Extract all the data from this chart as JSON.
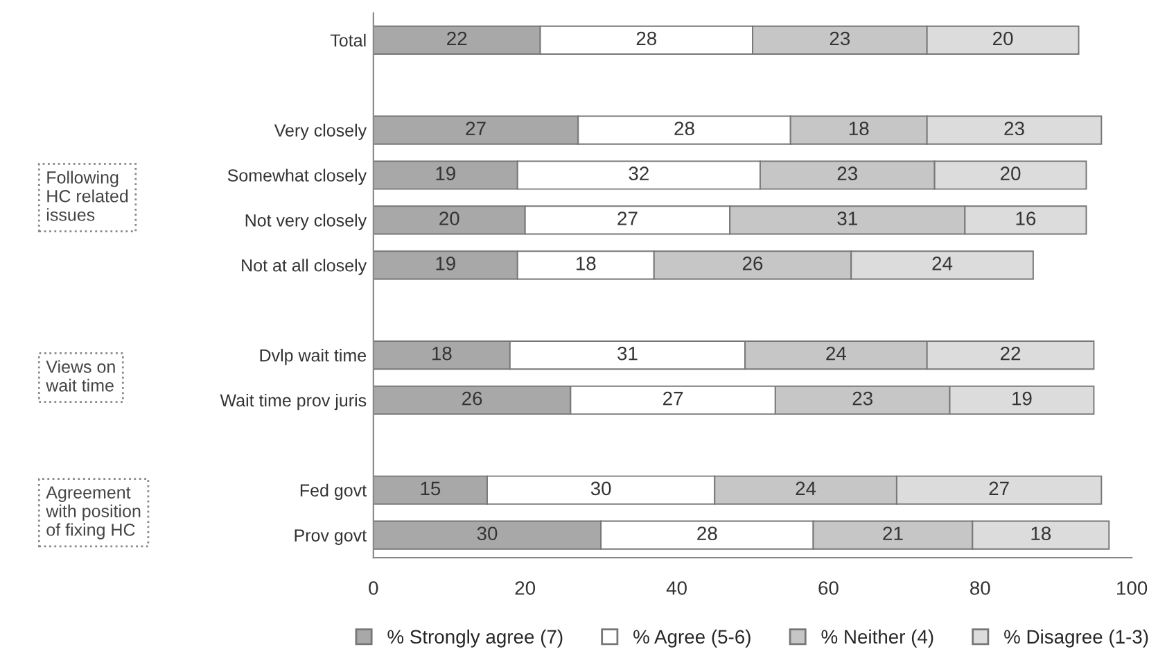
{
  "chart_data": {
    "type": "bar",
    "orientation": "horizontal",
    "stacked": true,
    "categories": [
      "Total",
      null,
      "Very closely",
      "Somewhat closely",
      "Not very closely",
      "Not at all closely",
      null,
      "Dvlp wait time",
      "Wait time prov juris",
      null,
      "Fed govt",
      "Prov govt"
    ],
    "series": [
      {
        "name": "% Strongly agree (7)",
        "color": "#a8a8a8",
        "values": [
          22,
          null,
          27,
          19,
          20,
          19,
          null,
          18,
          26,
          null,
          15,
          30
        ]
      },
      {
        "name": "% Agree (5-6)",
        "color": "#ffffff",
        "values": [
          28,
          null,
          28,
          32,
          27,
          18,
          null,
          31,
          27,
          null,
          30,
          28
        ]
      },
      {
        "name": "% Neither (4)",
        "color": "#c6c6c6",
        "values": [
          23,
          null,
          18,
          23,
          31,
          26,
          null,
          24,
          23,
          null,
          24,
          21
        ]
      },
      {
        "name": "% Disagree (1-3)",
        "color": "#dcdcdc",
        "values": [
          20,
          null,
          23,
          20,
          16,
          24,
          null,
          22,
          19,
          null,
          27,
          18
        ]
      }
    ],
    "xlim": [
      0,
      100
    ],
    "xticks": [
      0,
      20,
      40,
      60,
      80,
      100
    ],
    "data_labels": true,
    "legend": "bottom",
    "grid": false,
    "annotations": [
      "Following\nHC related\nissues",
      "Views on\nwait time",
      "Agreement\nwith position\nof fixing HC"
    ]
  }
}
